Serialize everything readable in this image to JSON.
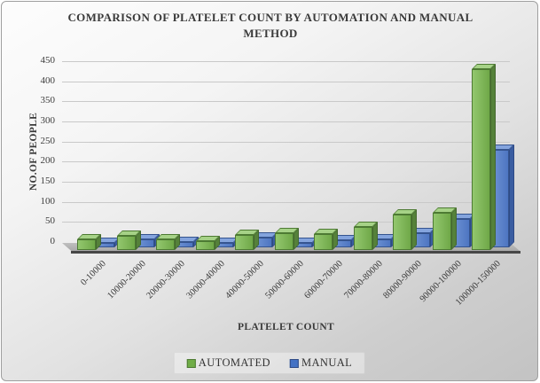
{
  "chart_data": {
    "type": "bar",
    "style": "3d-clustered-column",
    "title": "COMPARISON OF PLATELET COUNT BY AUTOMATION AND MANUAL METHOD",
    "xlabel": "PLATELET COUNT",
    "ylabel": "NO.OF PEOPLE",
    "categories": [
      "0-10000",
      "10000-20000",
      "20000-30000",
      "30000-40000",
      "40000-50000",
      "50000-60000",
      "60000-70000",
      "70000-80000",
      "80000-90000",
      "90000-100000",
      "100000-150000"
    ],
    "series": [
      {
        "name": "AUTOMATED",
        "color": "#70AD47",
        "values": [
          25,
          35,
          26,
          22,
          37,
          40,
          39,
          55,
          85,
          90,
          435
        ]
      },
      {
        "name": "MANUAL",
        "color": "#4472C4",
        "values": [
          10,
          20,
          12,
          10,
          23,
          10,
          18,
          20,
          33,
          68,
          235
        ]
      }
    ],
    "ylim": [
      0,
      450
    ],
    "ytick_step": 50,
    "grid": true,
    "legend_position": "bottom"
  },
  "colors": {
    "automated_fill": "#70AD47",
    "automated_border": "#4d7a33",
    "manual_fill": "#4472C4",
    "manual_border": "#2e4a85",
    "text": "#3a3a3a",
    "gridline": "#c9c9c9",
    "floor_edge": "#474747",
    "frame_border": "#9f9f9f"
  }
}
